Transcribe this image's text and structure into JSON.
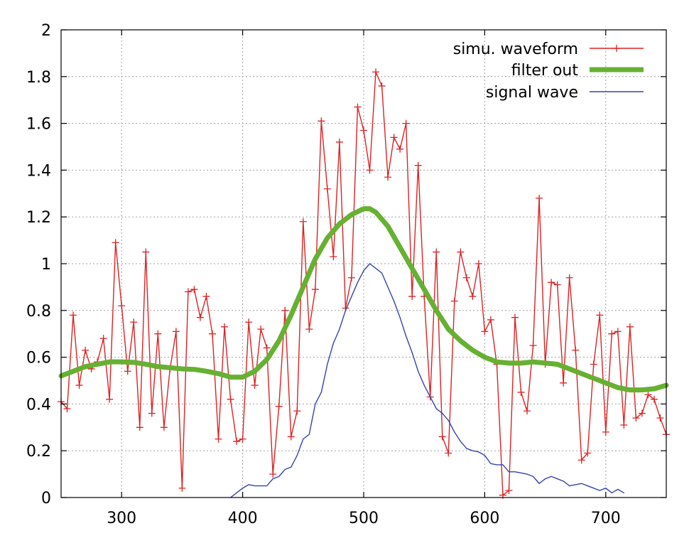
{
  "chart_data": {
    "type": "line",
    "title": "",
    "xlabel": "",
    "ylabel": "",
    "xlim": [
      250,
      750
    ],
    "ylim": [
      0,
      2
    ],
    "xticks": [
      300,
      400,
      500,
      600,
      700
    ],
    "yticks": [
      0,
      0.2,
      0.4,
      0.6,
      0.8,
      1,
      1.2,
      1.4,
      1.6,
      1.8,
      2
    ],
    "xtick_labels": [
      "300",
      "400",
      "500",
      "600",
      "700"
    ],
    "ytick_labels": [
      "0",
      "0.2",
      "0.4",
      "0.6",
      "0.8",
      "1",
      "1.2",
      "1.4",
      "1.6",
      "1.8",
      "2"
    ],
    "grid": true,
    "legend_position": "top-right",
    "series": [
      {
        "name": "simu. waveform",
        "color": "#dd2222",
        "marker": "plus",
        "x": [
          250,
          255,
          260,
          265,
          270,
          275,
          280,
          285,
          290,
          295,
          300,
          305,
          310,
          315,
          320,
          325,
          330,
          335,
          340,
          345,
          350,
          355,
          360,
          365,
          370,
          375,
          380,
          385,
          390,
          395,
          400,
          405,
          410,
          415,
          420,
          425,
          430,
          435,
          440,
          445,
          450,
          455,
          460,
          465,
          470,
          475,
          480,
          485,
          490,
          495,
          500,
          505,
          510,
          515,
          520,
          525,
          530,
          535,
          540,
          545,
          550,
          555,
          560,
          565,
          570,
          575,
          580,
          585,
          590,
          595,
          600,
          605,
          610,
          615,
          620,
          625,
          630,
          635,
          640,
          645,
          650,
          655,
          660,
          665,
          670,
          675,
          680,
          685,
          690,
          695,
          700,
          705,
          710,
          715,
          720,
          725,
          730,
          735,
          740,
          745,
          750
        ],
        "y": [
          0.41,
          0.38,
          0.78,
          0.48,
          0.63,
          0.55,
          0.58,
          0.68,
          0.42,
          1.09,
          0.82,
          0.54,
          0.75,
          0.3,
          1.05,
          0.36,
          0.7,
          0.3,
          0.55,
          0.71,
          0.04,
          0.88,
          0.89,
          0.77,
          0.86,
          0.7,
          0.25,
          0.73,
          0.42,
          0.24,
          0.25,
          0.75,
          0.48,
          0.72,
          0.64,
          0.1,
          0.39,
          0.8,
          0.26,
          0.37,
          1.18,
          0.72,
          0.89,
          1.61,
          1.32,
          1.03,
          1.52,
          0.81,
          0.94,
          1.67,
          1.57,
          1.4,
          1.82,
          1.76,
          1.37,
          1.54,
          1.49,
          1.6,
          0.86,
          1.42,
          0.86,
          0.43,
          1.05,
          0.26,
          0.19,
          0.84,
          1.05,
          0.94,
          0.86,
          1.0,
          0.71,
          0.76,
          0.57,
          0.01,
          0.03,
          0.77,
          0.45,
          0.37,
          0.65,
          1.28,
          0.57,
          0.92,
          0.91,
          0.49,
          0.94,
          0.63,
          0.16,
          0.19,
          0.57,
          0.78,
          0.28,
          0.7,
          0.71,
          0.31,
          0.73,
          0.34,
          0.36,
          0.44,
          0.42,
          0.34,
          0.27
        ]
      },
      {
        "name": "filter out",
        "color": "#66b032",
        "marker": "none",
        "x": [
          250,
          260,
          270,
          280,
          290,
          300,
          310,
          320,
          330,
          340,
          350,
          360,
          370,
          380,
          390,
          400,
          410,
          420,
          430,
          440,
          450,
          460,
          470,
          480,
          490,
          500,
          505,
          510,
          520,
          530,
          540,
          550,
          560,
          570,
          580,
          590,
          600,
          610,
          620,
          630,
          640,
          650,
          660,
          670,
          680,
          690,
          700,
          710,
          720,
          730,
          740,
          750
        ],
        "y": [
          0.52,
          0.54,
          0.56,
          0.57,
          0.58,
          0.58,
          0.578,
          0.57,
          0.56,
          0.555,
          0.55,
          0.548,
          0.54,
          0.53,
          0.515,
          0.515,
          0.54,
          0.59,
          0.67,
          0.78,
          0.9,
          1.02,
          1.11,
          1.17,
          1.21,
          1.235,
          1.235,
          1.22,
          1.16,
          1.07,
          0.98,
          0.89,
          0.8,
          0.72,
          0.67,
          0.63,
          0.6,
          0.58,
          0.575,
          0.575,
          0.58,
          0.575,
          0.57,
          0.55,
          0.53,
          0.51,
          0.49,
          0.47,
          0.46,
          0.46,
          0.465,
          0.48
        ]
      },
      {
        "name": "signal wave",
        "color": "#3344aa",
        "marker": "none",
        "x": [
          390,
          395,
          400,
          405,
          410,
          415,
          420,
          425,
          430,
          435,
          440,
          445,
          450,
          455,
          460,
          465,
          470,
          475,
          480,
          485,
          490,
          495,
          500,
          505,
          510,
          515,
          520,
          525,
          530,
          535,
          540,
          545,
          550,
          555,
          560,
          565,
          570,
          575,
          580,
          585,
          590,
          595,
          600,
          605,
          610,
          615,
          620,
          625,
          630,
          635,
          640,
          645,
          650,
          655,
          660,
          665,
          670,
          675,
          680,
          685,
          690,
          695,
          700,
          705,
          710,
          715
        ],
        "y": [
          0.0,
          0.02,
          0.04,
          0.055,
          0.05,
          0.05,
          0.05,
          0.08,
          0.09,
          0.12,
          0.13,
          0.18,
          0.25,
          0.27,
          0.4,
          0.45,
          0.57,
          0.66,
          0.72,
          0.8,
          0.86,
          0.92,
          0.97,
          1.0,
          0.98,
          0.96,
          0.9,
          0.84,
          0.77,
          0.69,
          0.62,
          0.54,
          0.48,
          0.43,
          0.38,
          0.36,
          0.33,
          0.28,
          0.24,
          0.21,
          0.2,
          0.195,
          0.18,
          0.145,
          0.14,
          0.14,
          0.11,
          0.11,
          0.105,
          0.1,
          0.09,
          0.06,
          0.08,
          0.09,
          0.08,
          0.07,
          0.05,
          0.055,
          0.06,
          0.05,
          0.04,
          0.03,
          0.04,
          0.02,
          0.035,
          0.02
        ]
      }
    ]
  }
}
